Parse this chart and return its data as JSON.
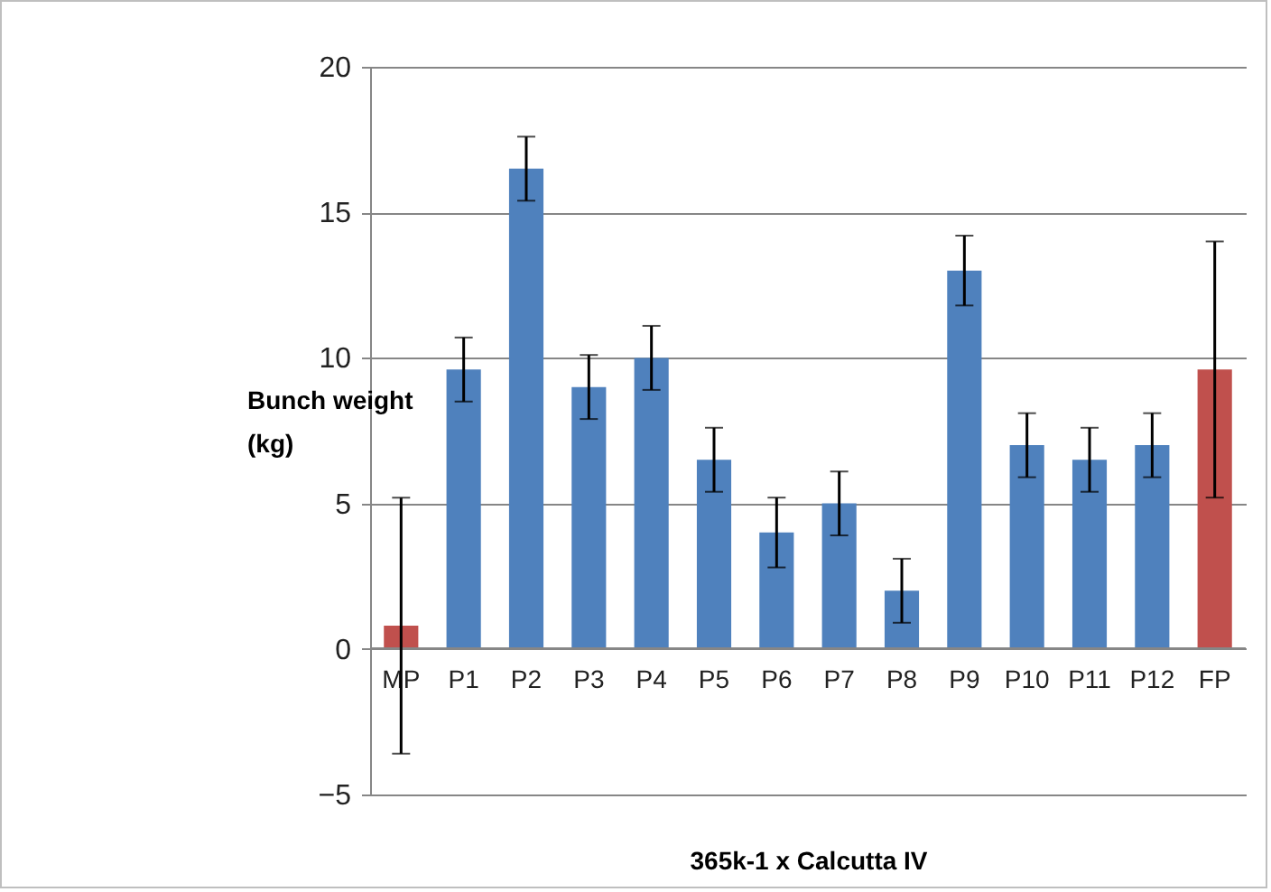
{
  "chart_data": {
    "type": "bar",
    "xlabel": "365k-1 x Calcutta IV",
    "ylabel": "Bunch weight (kg)",
    "categories": [
      "MP",
      "P1",
      "P2",
      "P3",
      "P4",
      "P5",
      "P6",
      "P7",
      "P8",
      "P9",
      "P10",
      "P11",
      "P12",
      "FP"
    ],
    "values": [
      0.8,
      9.6,
      16.5,
      9.0,
      10.0,
      6.5,
      4.0,
      5.0,
      2.0,
      13.0,
      7.0,
      6.5,
      7.0,
      9.6
    ],
    "errors": [
      4.4,
      1.1,
      1.1,
      1.1,
      1.1,
      1.1,
      1.2,
      1.1,
      1.1,
      1.2,
      1.1,
      1.1,
      1.1,
      4.4
    ],
    "colors": [
      "#c0504d",
      "#4f81bd",
      "#4f81bd",
      "#4f81bd",
      "#4f81bd",
      "#4f81bd",
      "#4f81bd",
      "#4f81bd",
      "#4f81bd",
      "#4f81bd",
      "#4f81bd",
      "#4f81bd",
      "#4f81bd",
      "#c0504d"
    ],
    "ylim": [
      -5,
      20
    ],
    "yticks": [
      -5,
      0,
      5,
      10,
      15,
      20
    ],
    "grid": "y"
  }
}
